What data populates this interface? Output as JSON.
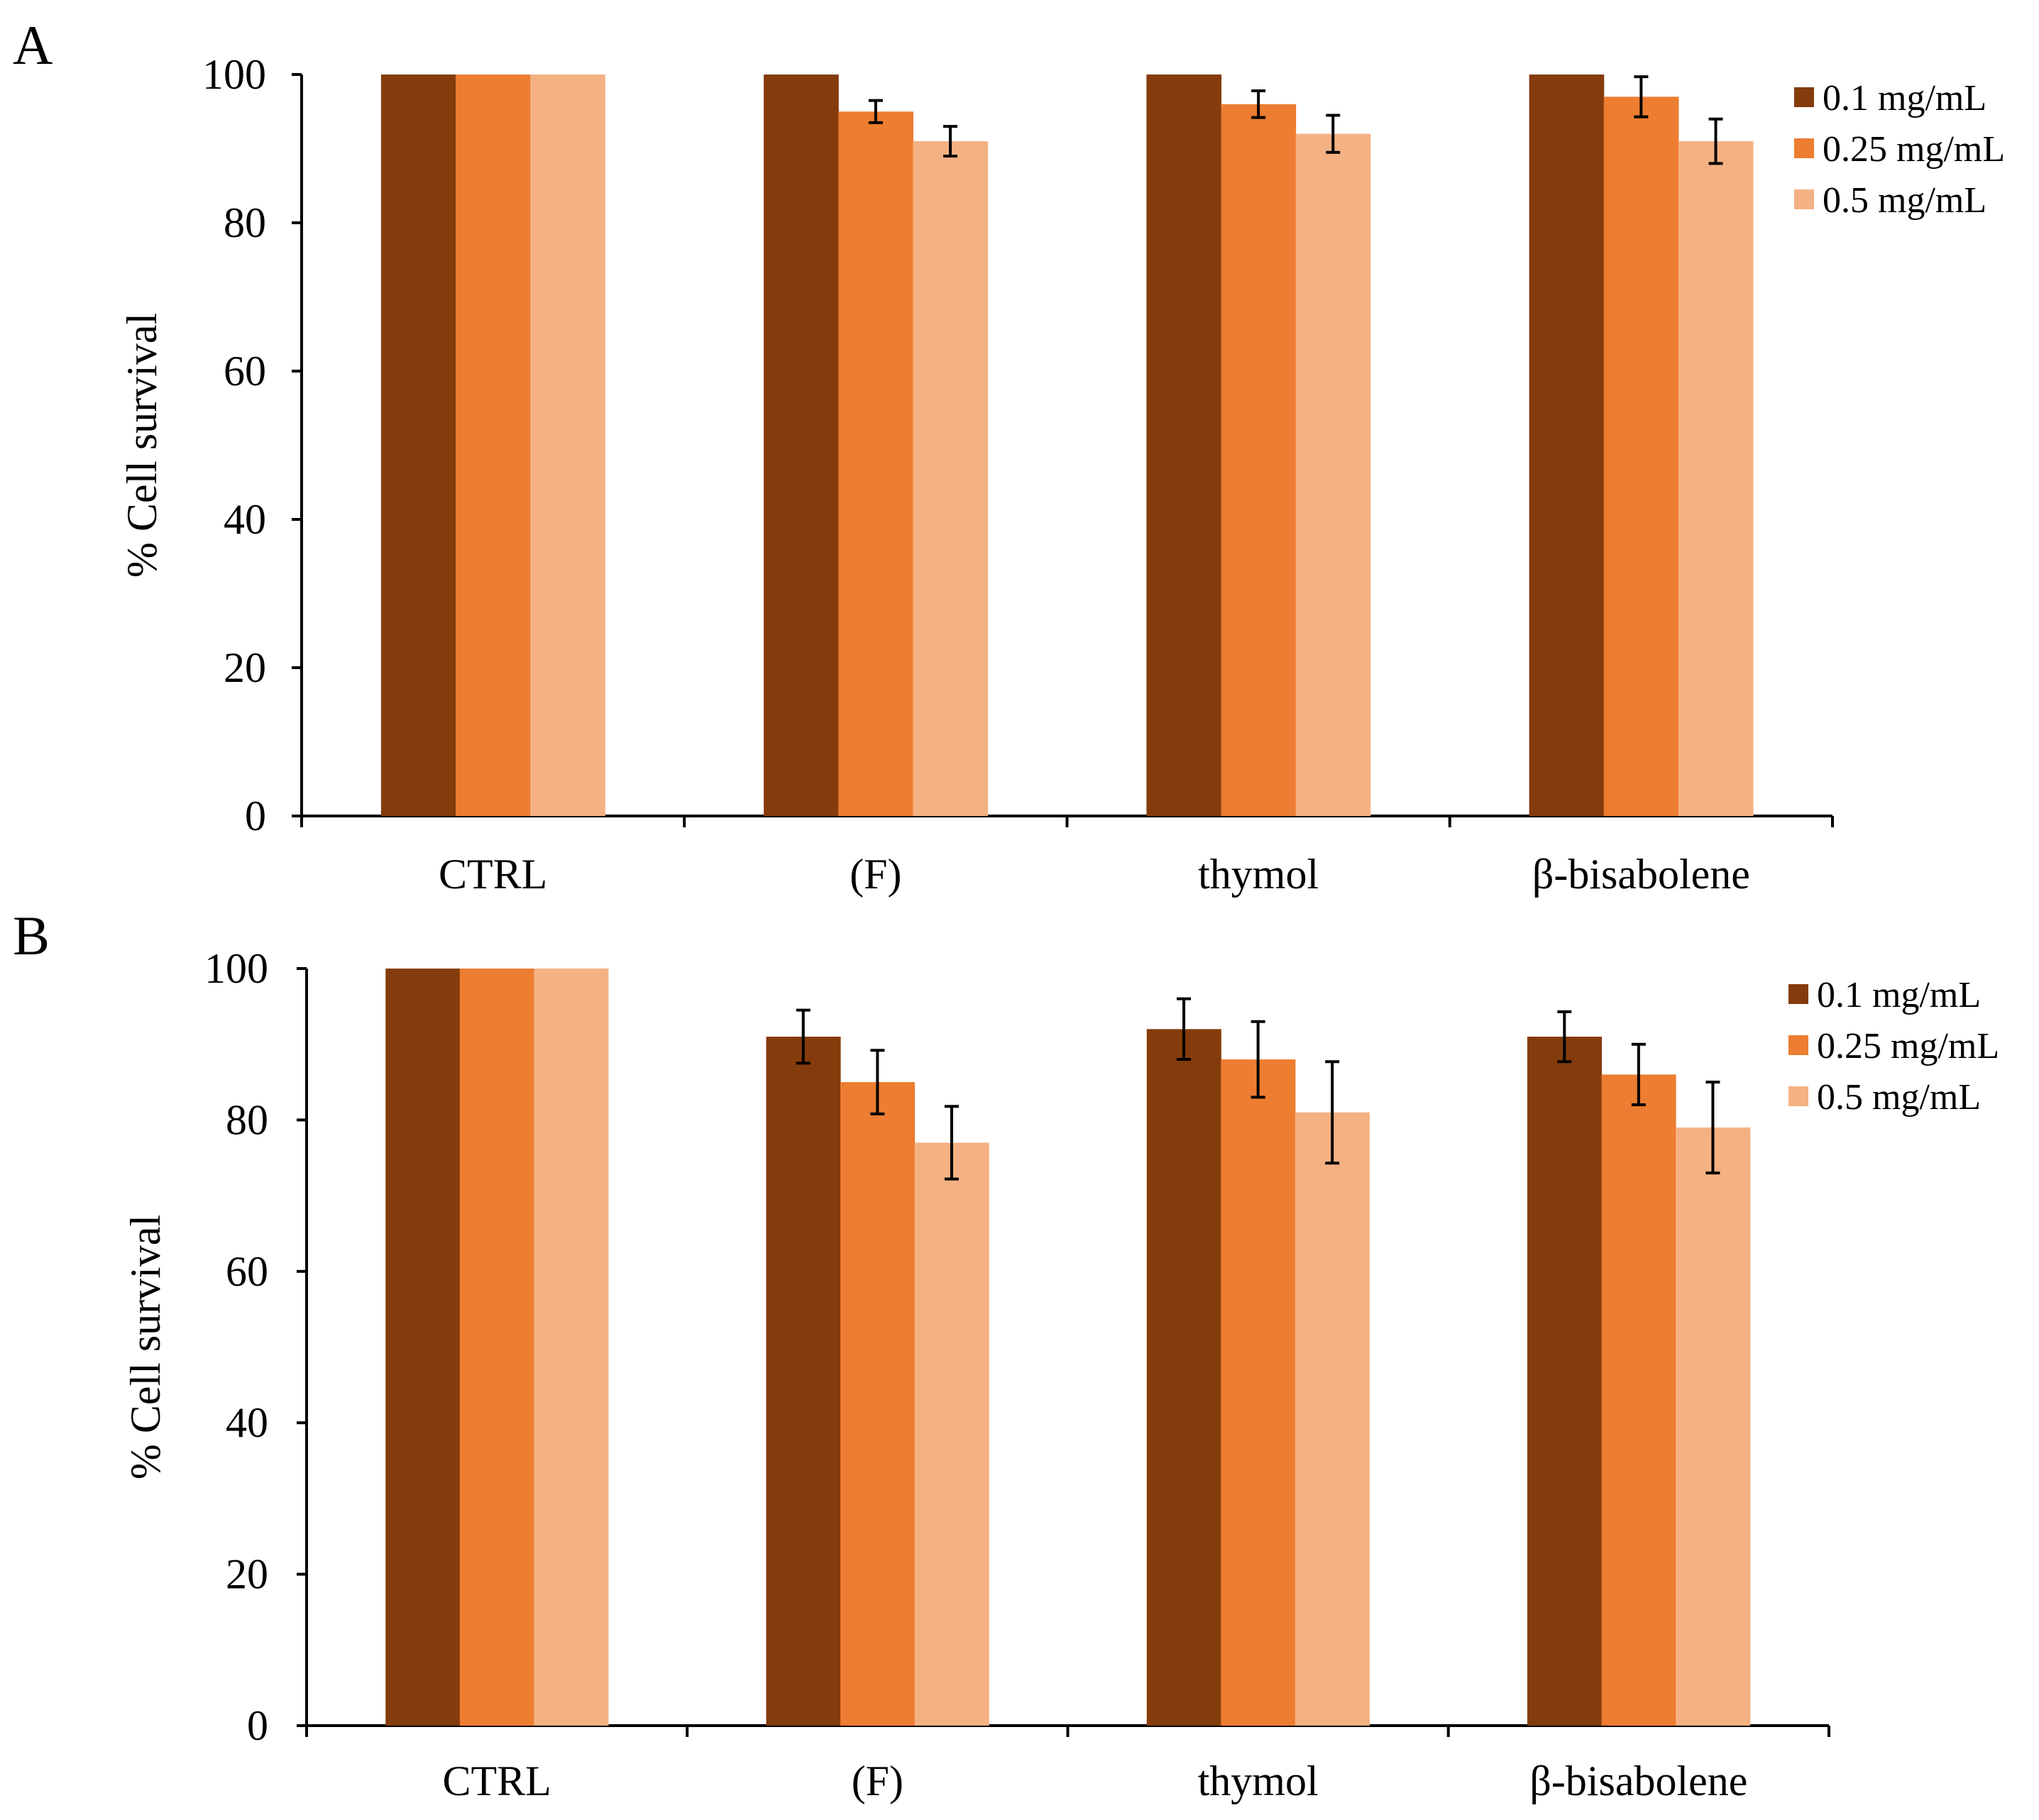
{
  "chart_data": [
    {
      "type": "bar",
      "panel": "A",
      "ylabel": "% Cell survival",
      "xlabel": "",
      "ylim": [
        0,
        100
      ],
      "yticks": [
        "0",
        "20",
        "40",
        "60",
        "80",
        "100"
      ],
      "categories": [
        "CTRL",
        "(F)",
        "thymol",
        "β-bisabolene"
      ],
      "series": [
        {
          "name": "0.1 mg/mL",
          "color": "#843c0c",
          "values": [
            100,
            100,
            100,
            100
          ],
          "errors": [
            0,
            0,
            0,
            0
          ]
        },
        {
          "name": "0.25 mg/mL",
          "color": "#ed7d31",
          "values": [
            100,
            95,
            96,
            97
          ],
          "errors": [
            0,
            1.5,
            1.8,
            2.7
          ]
        },
        {
          "name": "0.5 mg/mL",
          "color": "#f4b183",
          "values": [
            100,
            91,
            92,
            91
          ],
          "errors": [
            0,
            2,
            2.5,
            3
          ]
        }
      ],
      "legend_position": "top-right"
    },
    {
      "type": "bar",
      "panel": "B",
      "ylabel": "% Cell survival",
      "xlabel": "",
      "ylim": [
        0,
        100
      ],
      "yticks": [
        "0",
        "20",
        "40",
        "60",
        "80",
        "100"
      ],
      "categories": [
        "CTRL",
        "(F)",
        "thymol",
        "β-bisabolene"
      ],
      "series": [
        {
          "name": "0.1 mg/mL",
          "color": "#843c0c",
          "values": [
            100,
            91,
            92,
            91
          ],
          "errors": [
            0,
            3.5,
            4,
            3.3
          ]
        },
        {
          "name": "0.25 mg/mL",
          "color": "#ed7d31",
          "values": [
            100,
            85,
            88,
            86
          ],
          "errors": [
            0,
            4.2,
            5,
            4
          ]
        },
        {
          "name": "0.5 mg/mL",
          "color": "#f4b183",
          "values": [
            100,
            77,
            81,
            79
          ],
          "errors": [
            0,
            4.8,
            6.7,
            6
          ]
        }
      ],
      "legend_position": "top-right"
    }
  ]
}
